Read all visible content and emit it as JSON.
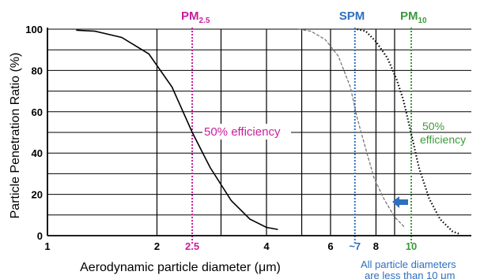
{
  "chart_data": {
    "type": "line",
    "xscale": "log",
    "xlim": [
      1,
      20
    ],
    "ylim": [
      0,
      100
    ],
    "grid": true,
    "xlabel": "Aerodynamic particle diameter (μm)",
    "ylabel": "Particle Penetration Ratio (%)",
    "yticks": [
      0,
      20,
      40,
      60,
      80,
      100
    ],
    "xticks": [
      {
        "value": 1,
        "label": "1",
        "color": "#000000"
      },
      {
        "value": 2,
        "label": "2",
        "color": "#000000"
      },
      {
        "value": 2.5,
        "label": "2.5",
        "color": "#c81e9c"
      },
      {
        "value": 4,
        "label": "4",
        "color": "#000000"
      },
      {
        "value": 6,
        "label": "6",
        "color": "#000000"
      },
      {
        "value": 7,
        "label": "~7",
        "color": "#2e6fc0"
      },
      {
        "value": 8,
        "label": "8",
        "color": "#000000"
      },
      {
        "value": 10,
        "label": "10",
        "color": "#3c9a3c"
      }
    ],
    "series": [
      {
        "style": "solid",
        "color": "#000000",
        "x": [
          1.2,
          1.35,
          1.6,
          1.9,
          2.2,
          2.5,
          2.8,
          3.2,
          3.6,
          4.0,
          4.3
        ],
        "y": [
          99.5,
          99,
          96,
          88,
          72,
          50,
          33,
          17,
          8,
          4,
          3
        ]
      },
      {
        "style": "dashed",
        "color": "#777777",
        "x": [
          4.9,
          5.3,
          5.8,
          6.3,
          6.8,
          7.1,
          7.5,
          7.9,
          8.4,
          9.0,
          9.6
        ],
        "y": [
          100,
          99,
          95,
          87,
          72,
          57,
          42,
          28,
          18,
          9,
          4
        ]
      },
      {
        "style": "dotted",
        "color": "#000000",
        "x": [
          7.1,
          7.5,
          8.0,
          8.6,
          9.1,
          9.5,
          9.8,
          10.1,
          10.5,
          11.2,
          12.0,
          13.0,
          13.5
        ],
        "y": [
          100,
          99,
          94,
          86,
          76,
          66,
          56,
          46,
          33,
          18,
          8,
          2,
          1
        ]
      }
    ],
    "markers": [
      {
        "x": 2.5,
        "label": "PM",
        "sub": "2.5",
        "color": "#c81e9c"
      },
      {
        "x": 7,
        "label": "SPM",
        "sub": "",
        "color": "#2e6fc0"
      },
      {
        "x": 10,
        "label": "PM",
        "sub": "10",
        "color": "#3c9a3c"
      }
    ],
    "annotations": [
      {
        "text": "50% efficiency",
        "color": "#c81e9c"
      },
      {
        "text": "50%",
        "color": "#3c9a3c"
      },
      {
        "text": "efficiency",
        "color": "#3c9a3c"
      },
      {
        "text": "All particle diameters",
        "color": "#2e6fc0"
      },
      {
        "text": "are less than 10 μm",
        "color": "#2e6fc0"
      }
    ],
    "arrow_color": "#2e6fc0"
  }
}
